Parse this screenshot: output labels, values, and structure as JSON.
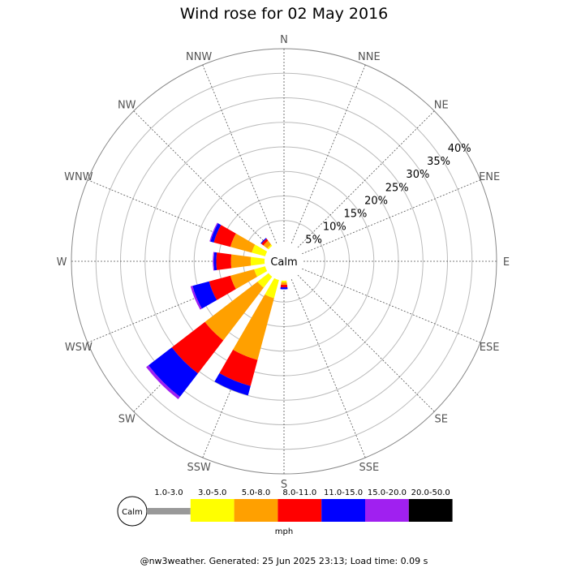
{
  "chart_data": {
    "type": "wind-rose",
    "title": "Wind rose for 02 May 2016",
    "directions": [
      "N",
      "NNE",
      "NE",
      "ENE",
      "E",
      "ESE",
      "SE",
      "SSE",
      "S",
      "SSW",
      "SW",
      "WSW",
      "W",
      "WNW",
      "NW",
      "NNW"
    ],
    "rings": [
      "5%",
      "10%",
      "15%",
      "20%",
      "25%",
      "30%",
      "35%",
      "40%"
    ],
    "ring_max": 40,
    "calm_label": "Calm",
    "unit": "mph",
    "speed_bins": [
      {
        "range": "1.0-3.0",
        "color": "#999999"
      },
      {
        "range": "3.0-5.0",
        "color": "#ffff00"
      },
      {
        "range": "5.0-8.0",
        "color": "#ffa000"
      },
      {
        "range": "8.0-11.0",
        "color": "#ff0000"
      },
      {
        "range": "11.0-15.0",
        "color": "#0000ff"
      },
      {
        "range": "15.0-20.0",
        "color": "#a020f0"
      },
      {
        "range": "20.0-50.0",
        "color": "#000000"
      }
    ],
    "series": [
      {
        "direction": "S",
        "values": [
          0,
          1.0,
          0.5,
          0.5,
          0.4,
          0,
          0
        ]
      },
      {
        "direction": "SSW",
        "values": [
          0,
          4.5,
          13.0,
          5.5,
          2.0,
          0,
          0
        ]
      },
      {
        "direction": "SW",
        "values": [
          0,
          3.5,
          13.5,
          8.5,
          6.0,
          0.6,
          0
        ]
      },
      {
        "direction": "WSW",
        "values": [
          0,
          3.0,
          5.0,
          4.5,
          3.5,
          0.4,
          0
        ]
      },
      {
        "direction": "W",
        "values": [
          0,
          3.5,
          4.0,
          3.0,
          0.5,
          0.2,
          0
        ]
      },
      {
        "direction": "WNW",
        "values": [
          0,
          3.5,
          4.5,
          3.5,
          0.7,
          0.2,
          0
        ]
      },
      {
        "direction": "NW",
        "values": [
          0.5,
          0.5,
          1.0,
          0.5,
          0.2,
          0,
          0
        ]
      }
    ]
  },
  "footer": "@nw3weather. Generated: 25 Jun 2025 23:13; Load time: 0.09 s"
}
